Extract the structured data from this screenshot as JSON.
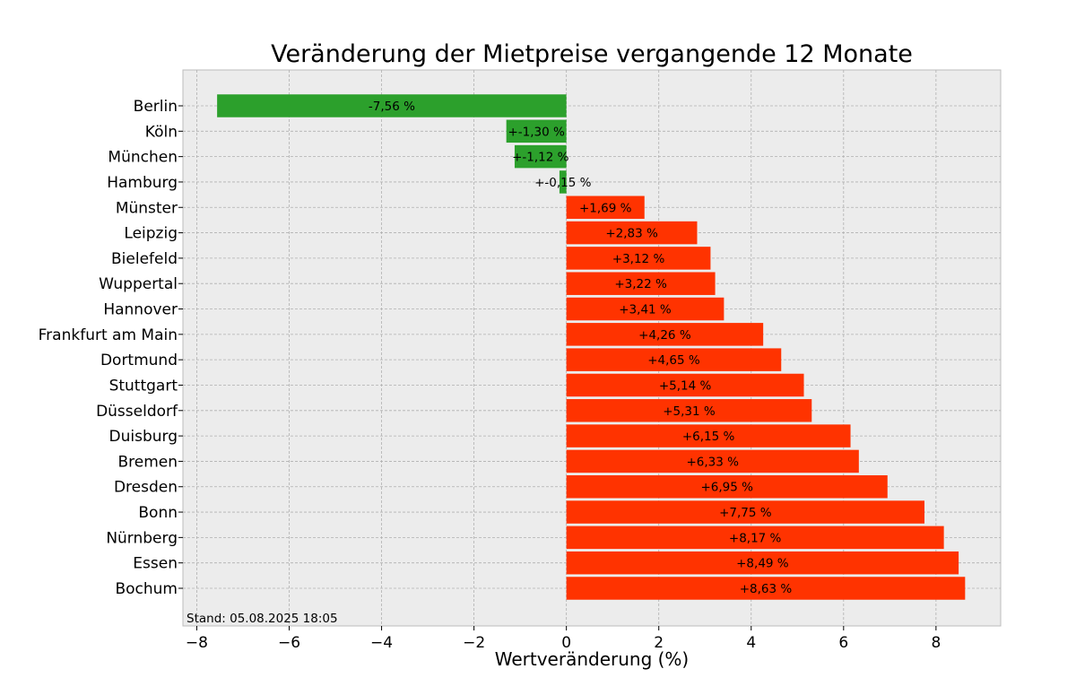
{
  "chart_data": {
    "type": "bar",
    "orientation": "horizontal",
    "title": "Veränderung der Mietpreise vergangende 12 Monate",
    "xlabel": "Wertveränderung (%)",
    "ylabel": "",
    "xlim": [
      -8.3,
      9.4
    ],
    "xticks": [
      -8,
      -6,
      -4,
      -2,
      0,
      2,
      4,
      6,
      8
    ],
    "xtick_labels": [
      "−8",
      "−6",
      "−4",
      "−2",
      "0",
      "2",
      "4",
      "6",
      "8"
    ],
    "grid": true,
    "categories": [
      "Berlin",
      "Köln",
      "München",
      "Hamburg",
      "Münster",
      "Leipzig",
      "Bielefeld",
      "Wuppertal",
      "Hannover",
      "Frankfurt am Main",
      "Dortmund",
      "Stuttgart",
      "Düsseldorf",
      "Duisburg",
      "Bremen",
      "Dresden",
      "Bonn",
      "Nürnberg",
      "Essen",
      "Bochum"
    ],
    "values": [
      -7.56,
      -1.3,
      -1.12,
      -0.15,
      1.69,
      2.83,
      3.12,
      3.22,
      3.41,
      4.26,
      4.65,
      5.14,
      5.31,
      6.15,
      6.33,
      6.95,
      7.75,
      8.17,
      8.49,
      8.63
    ],
    "data_labels": [
      "-7,56 %",
      "+-1,30 %",
      "+-1,12 %",
      "+-0,15 %",
      "+1,69 %",
      "+2,83 %",
      "+3,12 %",
      "+3,22 %",
      "+3,41 %",
      "+4,26 %",
      "+4,65 %",
      "+5,14 %",
      "+5,31 %",
      "+6,15 %",
      "+6,33 %",
      "+6,95 %",
      "+7,75 %",
      "+8,17 %",
      "+8,49 %",
      "+8,63 %"
    ],
    "colors": {
      "negative": "#2ca02c",
      "positive": "#ff3300",
      "plot_background": "#ececec",
      "grid": "#b0b0b0"
    },
    "footnote": "Stand: 05.08.2025 18:05"
  }
}
